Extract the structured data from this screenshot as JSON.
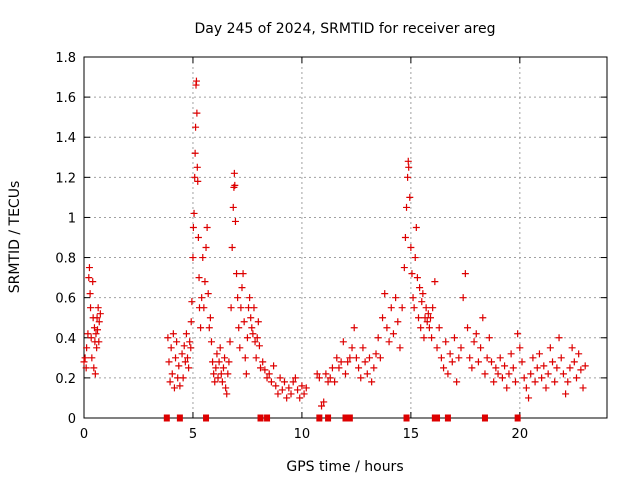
{
  "chart_data": {
    "type": "scatter",
    "title": "Day 245 of 2024, SRMTID for receiver areg",
    "xlabel": "GPS time / hours",
    "ylabel": "SRMTID / TECUs",
    "xlim": [
      0,
      24
    ],
    "ylim": [
      0,
      1.8
    ],
    "xticks": [
      0,
      5,
      10,
      15,
      20
    ],
    "xtick_labels": [
      "0",
      "5",
      "10",
      "15",
      "20"
    ],
    "yticks": [
      0,
      0.2,
      0.4,
      0.6,
      0.8,
      1,
      1.2,
      1.4,
      1.6,
      1.8
    ],
    "ytick_labels": [
      "0",
      "0.2",
      "0.4",
      "0.6",
      "0.8",
      "1",
      "1.2",
      "1.4",
      "1.6",
      "1.8"
    ],
    "grid": true,
    "colors": {
      "series": "#dd0000",
      "grid": "#a0a0a0",
      "axes": "#000000"
    },
    "series": [
      {
        "name": "SRMTID",
        "marker": "plus",
        "points": [
          [
            0.0,
            0.28
          ],
          [
            0.05,
            0.3
          ],
          [
            0.1,
            0.25
          ],
          [
            0.12,
            0.35
          ],
          [
            0.18,
            0.42
          ],
          [
            0.22,
            0.7
          ],
          [
            0.25,
            0.75
          ],
          [
            0.28,
            0.62
          ],
          [
            0.3,
            0.55
          ],
          [
            0.33,
            0.4
          ],
          [
            0.36,
            0.3
          ],
          [
            0.4,
            0.68
          ],
          [
            0.42,
            0.5
          ],
          [
            0.45,
            0.25
          ],
          [
            0.48,
            0.45
          ],
          [
            0.5,
            0.38
          ],
          [
            0.52,
            0.22
          ],
          [
            0.55,
            0.42
          ],
          [
            0.58,
            0.35
          ],
          [
            0.6,
            0.5
          ],
          [
            0.62,
            0.44
          ],
          [
            0.65,
            0.55
          ],
          [
            0.68,
            0.38
          ],
          [
            0.7,
            0.48
          ],
          [
            0.75,
            0.52
          ],
          [
            3.85,
            0.4
          ],
          [
            3.9,
            0.28
          ],
          [
            3.95,
            0.18
          ],
          [
            4.0,
            0.35
          ],
          [
            4.05,
            0.22
          ],
          [
            4.1,
            0.42
          ],
          [
            4.15,
            0.15
          ],
          [
            4.2,
            0.3
          ],
          [
            4.25,
            0.38
          ],
          [
            4.3,
            0.2
          ],
          [
            4.35,
            0.26
          ],
          [
            4.4,
            0.16
          ],
          [
            4.5,
            0.32
          ],
          [
            4.55,
            0.2
          ],
          [
            4.6,
            0.36
          ],
          [
            4.65,
            0.28
          ],
          [
            4.7,
            0.42
          ],
          [
            4.75,
            0.3
          ],
          [
            4.8,
            0.25
          ],
          [
            4.85,
            0.38
          ],
          [
            4.9,
            0.35
          ],
          [
            4.92,
            0.48
          ],
          [
            4.95,
            0.58
          ],
          [
            5.0,
            0.8
          ],
          [
            5.02,
            0.95
          ],
          [
            5.05,
            1.02
          ],
          [
            5.08,
            1.2
          ],
          [
            5.1,
            1.32
          ],
          [
            5.12,
            1.45
          ],
          [
            5.14,
            1.66
          ],
          [
            5.16,
            1.68
          ],
          [
            5.18,
            1.52
          ],
          [
            5.2,
            1.25
          ],
          [
            5.22,
            1.18
          ],
          [
            5.25,
            0.9
          ],
          [
            5.28,
            0.7
          ],
          [
            5.3,
            0.55
          ],
          [
            5.35,
            0.45
          ],
          [
            5.4,
            0.6
          ],
          [
            5.45,
            0.8
          ],
          [
            5.5,
            0.55
          ],
          [
            5.55,
            0.68
          ],
          [
            5.6,
            0.85
          ],
          [
            5.65,
            0.95
          ],
          [
            5.7,
            0.62
          ],
          [
            5.75,
            0.45
          ],
          [
            5.8,
            0.5
          ],
          [
            5.85,
            0.38
          ],
          [
            5.9,
            0.28
          ],
          [
            5.95,
            0.22
          ],
          [
            6.0,
            0.18
          ],
          [
            6.05,
            0.25
          ],
          [
            6.1,
            0.32
          ],
          [
            6.15,
            0.2
          ],
          [
            6.2,
            0.28
          ],
          [
            6.25,
            0.35
          ],
          [
            6.3,
            0.22
          ],
          [
            6.35,
            0.18
          ],
          [
            6.4,
            0.25
          ],
          [
            6.45,
            0.3
          ],
          [
            6.5,
            0.15
          ],
          [
            6.55,
            0.12
          ],
          [
            6.6,
            0.22
          ],
          [
            6.65,
            0.28
          ],
          [
            6.7,
            0.38
          ],
          [
            6.75,
            0.55
          ],
          [
            6.8,
            0.85
          ],
          [
            6.85,
            1.05
          ],
          [
            6.88,
            1.15
          ],
          [
            6.9,
            1.22
          ],
          [
            6.92,
            1.16
          ],
          [
            6.95,
            0.98
          ],
          [
            7.0,
            0.72
          ],
          [
            7.05,
            0.6
          ],
          [
            7.1,
            0.45
          ],
          [
            7.15,
            0.35
          ],
          [
            7.2,
            0.55
          ],
          [
            7.25,
            0.65
          ],
          [
            7.3,
            0.72
          ],
          [
            7.35,
            0.48
          ],
          [
            7.4,
            0.3
          ],
          [
            7.45,
            0.22
          ],
          [
            7.5,
            0.4
          ],
          [
            7.55,
            0.55
          ],
          [
            7.6,
            0.6
          ],
          [
            7.65,
            0.5
          ],
          [
            7.7,
            0.45
          ],
          [
            7.75,
            0.42
          ],
          [
            7.8,
            0.55
          ],
          [
            7.85,
            0.38
          ],
          [
            7.9,
            0.3
          ],
          [
            7.95,
            0.4
          ],
          [
            8.0,
            0.48
          ],
          [
            8.05,
            0.36
          ],
          [
            8.1,
            0.25
          ],
          [
            8.2,
            0.28
          ],
          [
            8.3,
            0.24
          ],
          [
            8.4,
            0.2
          ],
          [
            8.5,
            0.22
          ],
          [
            8.6,
            0.18
          ],
          [
            8.7,
            0.26
          ],
          [
            8.8,
            0.16
          ],
          [
            8.9,
            0.12
          ],
          [
            9.0,
            0.2
          ],
          [
            9.1,
            0.14
          ],
          [
            9.2,
            0.18
          ],
          [
            9.3,
            0.1
          ],
          [
            9.4,
            0.15
          ],
          [
            9.5,
            0.12
          ],
          [
            9.6,
            0.18
          ],
          [
            9.7,
            0.2
          ],
          [
            9.8,
            0.14
          ],
          [
            9.9,
            0.1
          ],
          [
            10.0,
            0.16
          ],
          [
            10.1,
            0.12
          ],
          [
            10.2,
            0.15
          ],
          [
            10.7,
            0.22
          ],
          [
            10.8,
            0.2
          ],
          [
            10.9,
            0.06
          ],
          [
            11.0,
            0.08
          ],
          [
            11.1,
            0.22
          ],
          [
            11.2,
            0.18
          ],
          [
            11.3,
            0.2
          ],
          [
            11.4,
            0.25
          ],
          [
            11.5,
            0.18
          ],
          [
            11.6,
            0.3
          ],
          [
            11.7,
            0.25
          ],
          [
            11.8,
            0.28
          ],
          [
            11.9,
            0.38
          ],
          [
            12.0,
            0.22
          ],
          [
            12.1,
            0.28
          ],
          [
            12.2,
            0.3
          ],
          [
            12.3,
            0.35
          ],
          [
            12.4,
            0.45
          ],
          [
            12.5,
            0.3
          ],
          [
            12.6,
            0.25
          ],
          [
            12.7,
            0.2
          ],
          [
            12.8,
            0.35
          ],
          [
            12.9,
            0.28
          ],
          [
            13.0,
            0.22
          ],
          [
            13.1,
            0.3
          ],
          [
            13.2,
            0.18
          ],
          [
            13.3,
            0.25
          ],
          [
            13.4,
            0.32
          ],
          [
            13.5,
            0.4
          ],
          [
            13.6,
            0.3
          ],
          [
            13.7,
            0.5
          ],
          [
            13.8,
            0.62
          ],
          [
            13.9,
            0.45
          ],
          [
            14.0,
            0.38
          ],
          [
            14.1,
            0.55
          ],
          [
            14.2,
            0.42
          ],
          [
            14.3,
            0.6
          ],
          [
            14.4,
            0.48
          ],
          [
            14.5,
            0.35
          ],
          [
            14.6,
            0.55
          ],
          [
            14.7,
            0.75
          ],
          [
            14.75,
            0.9
          ],
          [
            14.8,
            1.05
          ],
          [
            14.85,
            1.2
          ],
          [
            14.88,
            1.28
          ],
          [
            14.9,
            1.25
          ],
          [
            14.95,
            1.1
          ],
          [
            15.0,
            0.85
          ],
          [
            15.05,
            0.72
          ],
          [
            15.1,
            0.6
          ],
          [
            15.15,
            0.55
          ],
          [
            15.2,
            0.8
          ],
          [
            15.25,
            0.95
          ],
          [
            15.3,
            0.7
          ],
          [
            15.35,
            0.5
          ],
          [
            15.4,
            0.65
          ],
          [
            15.45,
            0.45
          ],
          [
            15.5,
            0.58
          ],
          [
            15.55,
            0.62
          ],
          [
            15.6,
            0.4
          ],
          [
            15.65,
            0.5
          ],
          [
            15.7,
            0.55
          ],
          [
            15.75,
            0.48
          ],
          [
            15.8,
            0.52
          ],
          [
            15.85,
            0.45
          ],
          [
            15.9,
            0.5
          ],
          [
            15.95,
            0.4
          ],
          [
            16.0,
            0.55
          ],
          [
            16.1,
            0.68
          ],
          [
            16.2,
            0.35
          ],
          [
            16.3,
            0.45
          ],
          [
            16.4,
            0.3
          ],
          [
            16.5,
            0.25
          ],
          [
            16.6,
            0.38
          ],
          [
            16.7,
            0.22
          ],
          [
            16.8,
            0.32
          ],
          [
            16.9,
            0.28
          ],
          [
            17.0,
            0.4
          ],
          [
            17.1,
            0.18
          ],
          [
            17.2,
            0.3
          ],
          [
            17.3,
            0.35
          ],
          [
            17.4,
            0.6
          ],
          [
            17.5,
            0.72
          ],
          [
            17.6,
            0.45
          ],
          [
            17.7,
            0.3
          ],
          [
            17.8,
            0.25
          ],
          [
            17.9,
            0.38
          ],
          [
            18.0,
            0.42
          ],
          [
            18.1,
            0.28
          ],
          [
            18.2,
            0.35
          ],
          [
            18.3,
            0.5
          ],
          [
            18.4,
            0.22
          ],
          [
            18.5,
            0.3
          ],
          [
            18.6,
            0.4
          ],
          [
            18.7,
            0.28
          ],
          [
            18.8,
            0.18
          ],
          [
            18.9,
            0.25
          ],
          [
            19.0,
            0.22
          ],
          [
            19.1,
            0.3
          ],
          [
            19.2,
            0.2
          ],
          [
            19.3,
            0.26
          ],
          [
            19.4,
            0.15
          ],
          [
            19.5,
            0.22
          ],
          [
            19.6,
            0.32
          ],
          [
            19.7,
            0.25
          ],
          [
            19.8,
            0.18
          ],
          [
            19.9,
            0.42
          ],
          [
            20.0,
            0.35
          ],
          [
            20.1,
            0.28
          ],
          [
            20.2,
            0.2
          ],
          [
            20.3,
            0.15
          ],
          [
            20.4,
            0.1
          ],
          [
            20.5,
            0.22
          ],
          [
            20.6,
            0.3
          ],
          [
            20.7,
            0.18
          ],
          [
            20.8,
            0.25
          ],
          [
            20.9,
            0.32
          ],
          [
            21.0,
            0.2
          ],
          [
            21.1,
            0.26
          ],
          [
            21.2,
            0.15
          ],
          [
            21.3,
            0.22
          ],
          [
            21.4,
            0.35
          ],
          [
            21.5,
            0.28
          ],
          [
            21.6,
            0.18
          ],
          [
            21.7,
            0.25
          ],
          [
            21.8,
            0.4
          ],
          [
            21.9,
            0.3
          ],
          [
            22.0,
            0.22
          ],
          [
            22.1,
            0.12
          ],
          [
            22.2,
            0.18
          ],
          [
            22.3,
            0.25
          ],
          [
            22.4,
            0.35
          ],
          [
            22.5,
            0.28
          ],
          [
            22.6,
            0.2
          ],
          [
            22.7,
            0.32
          ],
          [
            22.8,
            0.24
          ],
          [
            22.9,
            0.15
          ],
          [
            23.0,
            0.26
          ]
        ]
      }
    ],
    "baseline_markers": [
      3.8,
      4.4,
      5.6,
      8.1,
      8.4,
      10.8,
      11.2,
      12.0,
      12.2,
      14.8,
      16.1,
      16.2,
      16.7,
      18.4,
      19.9
    ]
  }
}
